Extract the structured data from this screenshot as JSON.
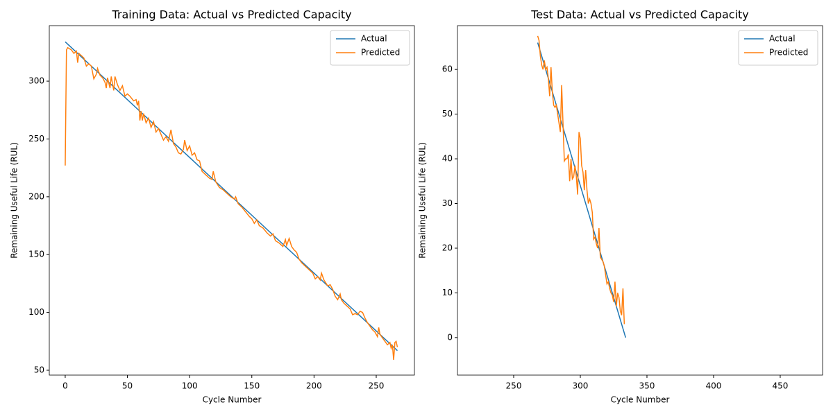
{
  "chart_data": [
    {
      "type": "line",
      "title": "Training Data: Actual vs Predicted Capacity",
      "x_label": "Cycle Number",
      "y_label": "Remaining Useful Life (RUL)",
      "xlim": [
        -12.8,
        280.7
      ],
      "ylim": [
        45.8,
        348
      ],
      "xticks": [
        0,
        50,
        100,
        150,
        200,
        250
      ],
      "yticks": [
        50,
        100,
        150,
        200,
        250,
        300
      ],
      "legend": "upper right",
      "series": [
        {
          "name": "Actual",
          "color": "#1f77b4",
          "x": [
            0,
            267
          ],
          "values": [
            334,
            67
          ]
        },
        {
          "name": "Predicted",
          "color": "#ff7f0e",
          "x": [
            0,
            1,
            2,
            5,
            7,
            9,
            10,
            11,
            13,
            15,
            17,
            19,
            21,
            23,
            25,
            26,
            28,
            30,
            32,
            33,
            34,
            36,
            37,
            39,
            40,
            42,
            44,
            46,
            48,
            50,
            52,
            55,
            57,
            58,
            59,
            60,
            61,
            62,
            63,
            65,
            67,
            69,
            71,
            73,
            75,
            77,
            79,
            81,
            83,
            85,
            87,
            89,
            91,
            93,
            95,
            96,
            98,
            100,
            102,
            104,
            106,
            108,
            110,
            113,
            116,
            118,
            119,
            121,
            124,
            127,
            130,
            133,
            136,
            137,
            139,
            142,
            145,
            148,
            150,
            152,
            154,
            156,
            159,
            162,
            165,
            167,
            169,
            172,
            175,
            177,
            178,
            180,
            182,
            184,
            186,
            188,
            190,
            193,
            196,
            199,
            201,
            203,
            205,
            206,
            208,
            211,
            213,
            215,
            217,
            219,
            221,
            222,
            224,
            226,
            229,
            231,
            233,
            235,
            237,
            239,
            241,
            243,
            245,
            247,
            249,
            251,
            252,
            253,
            255,
            257,
            259,
            261,
            262,
            263,
            264,
            265,
            266,
            267
          ],
          "values": [
            227,
            327,
            329,
            327,
            324,
            326,
            316,
            324,
            322,
            320,
            313,
            315,
            313,
            302,
            306,
            311,
            305,
            303,
            299,
            294,
            303,
            294,
            304,
            292,
            304,
            297,
            292,
            296,
            287,
            289,
            287,
            283,
            284,
            279,
            283,
            266,
            274,
            266,
            272,
            264,
            268,
            260,
            265,
            256,
            259,
            254,
            249,
            252,
            248,
            258,
            246,
            243,
            238,
            237,
            241,
            249,
            240,
            244,
            236,
            238,
            232,
            231,
            222,
            219,
            216,
            215,
            222,
            213,
            208,
            206,
            203,
            200,
            198,
            200,
            194,
            191,
            187,
            183,
            181,
            177,
            180,
            175,
            173,
            169,
            166,
            168,
            162,
            160,
            157,
            163,
            158,
            164,
            157,
            154,
            152,
            146,
            143,
            140,
            137,
            134,
            129,
            131,
            128,
            134,
            128,
            123,
            124,
            120,
            114,
            111,
            116,
            111,
            108,
            106,
            103,
            98,
            99,
            98,
            101,
            100,
            95,
            91,
            88,
            85,
            83,
            79,
            87,
            81,
            78,
            75,
            72,
            74,
            69,
            72,
            59,
            74,
            75,
            70
          ]
        }
      ]
    },
    {
      "type": "line",
      "title": "Test Data: Actual vs Predicted Capacity",
      "x_label": "Cycle Number",
      "y_label": "Remaining Useful Life (RUL)",
      "xlim": [
        207.8,
        481.8
      ],
      "ylim": [
        -8.4,
        69.8
      ],
      "xticks": [
        250,
        300,
        350,
        400,
        450
      ],
      "yticks": [
        0,
        10,
        20,
        30,
        40,
        50,
        60
      ],
      "legend": "upper right",
      "series": [
        {
          "name": "Actual",
          "color": "#1f77b4",
          "x": [
            268,
            334
          ],
          "values": [
            66,
            0
          ]
        },
        {
          "name": "Predicted",
          "color": "#ff7f0e",
          "x": [
            268,
            269,
            270,
            271,
            272,
            273,
            274,
            275,
            276,
            277,
            278,
            279,
            280,
            281,
            282,
            283,
            284,
            285,
            286,
            287,
            288,
            289,
            290,
            291,
            292,
            293,
            294,
            295,
            296,
            297,
            298,
            299,
            300,
            301,
            302,
            303,
            304,
            305,
            306,
            307,
            308,
            309,
            310,
            311,
            312,
            313,
            314,
            315,
            316,
            317,
            318,
            319,
            320,
            321,
            322,
            323,
            324,
            325,
            326,
            327,
            328,
            329,
            330,
            331,
            332,
            333
          ],
          "values": [
            67.5,
            66.5,
            63,
            61,
            60,
            62,
            60,
            60.5,
            58,
            54,
            60.5,
            55,
            52,
            51.5,
            52,
            50,
            48,
            46,
            56.5,
            48,
            39.5,
            40,
            40,
            41,
            35,
            40,
            35.5,
            36,
            38.5,
            36,
            32,
            46,
            44.5,
            38.5,
            37,
            33,
            37.5,
            33,
            30,
            31,
            30,
            28,
            22,
            22.5,
            21,
            20,
            24.5,
            18,
            17.5,
            17,
            16,
            14,
            12,
            12.5,
            11,
            10,
            9.5,
            8,
            12.5,
            7,
            10,
            9,
            6,
            5,
            11,
            3
          ]
        }
      ]
    }
  ]
}
